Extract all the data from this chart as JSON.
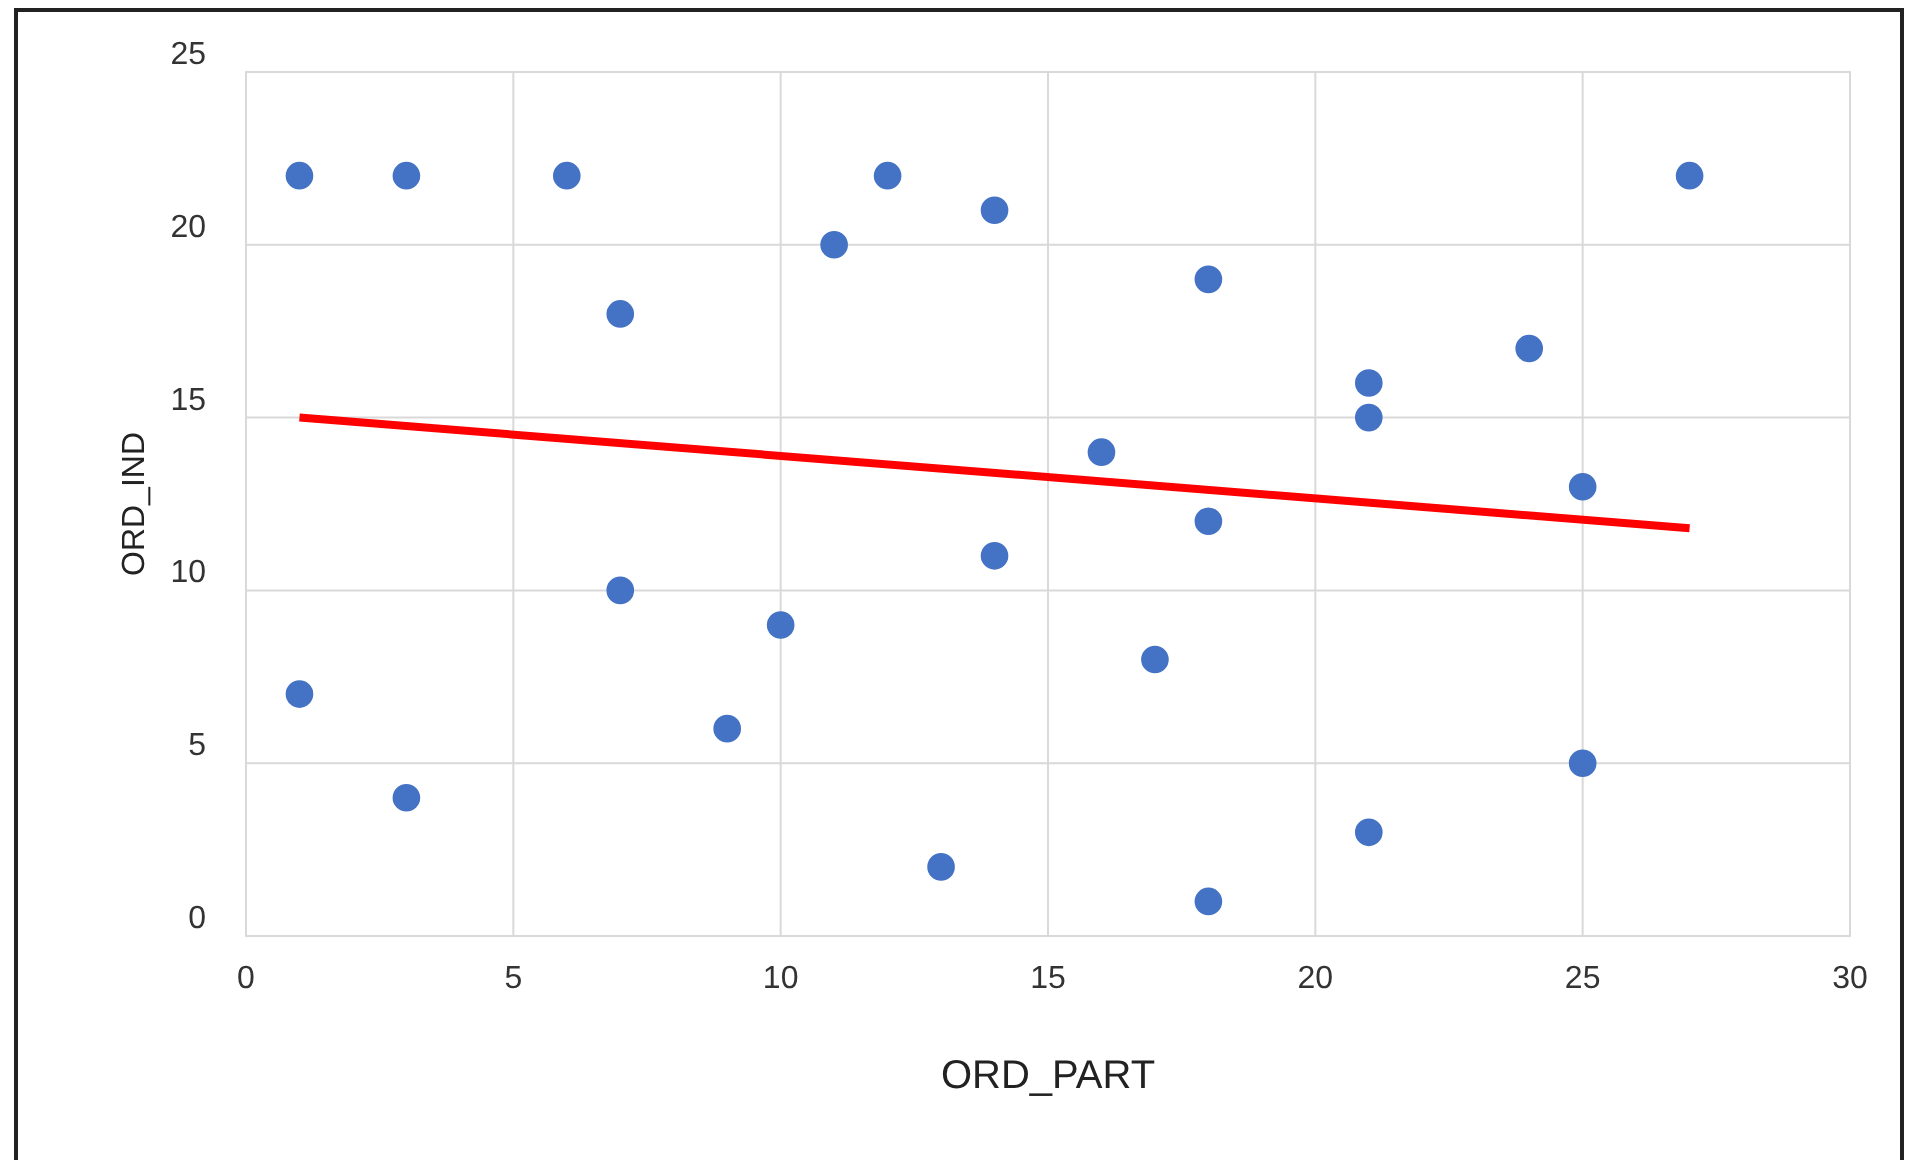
{
  "chart_data": {
    "type": "scatter",
    "xlabel": "ORD_PART",
    "ylabel": "ORD_IND",
    "xlim": [
      0,
      30
    ],
    "xticks": [
      0,
      5,
      10,
      15,
      20,
      25,
      30
    ],
    "ylim": [
      0,
      25
    ],
    "yticks": [
      0,
      5,
      10,
      15,
      20,
      25
    ],
    "grid": true,
    "series": [
      {
        "marker": "circle",
        "color": "#4472c4",
        "x": [
          1,
          3,
          6,
          12,
          14,
          11,
          7,
          18,
          27,
          21,
          24,
          21,
          16,
          25,
          18,
          14,
          7,
          10,
          17,
          1,
          9,
          25,
          3,
          21,
          13,
          18
        ],
        "values": [
          22,
          22,
          22,
          22,
          21,
          20,
          18,
          19,
          22,
          16,
          17,
          15,
          14,
          13,
          12,
          11,
          10,
          9,
          8,
          7,
          6,
          5,
          4,
          3,
          2,
          1
        ]
      },
      {
        "type": "line",
        "color": "#ff0000",
        "x": [
          1,
          27
        ],
        "values": [
          15,
          11.8
        ]
      }
    ]
  }
}
